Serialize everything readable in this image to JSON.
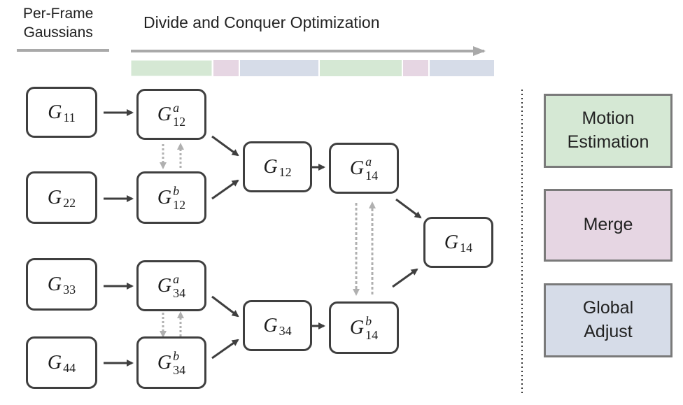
{
  "header": {
    "per_frame_line1": "Per-Frame",
    "per_frame_line2": "Gaussians",
    "optimization_title": "Divide and Conquer Optimization"
  },
  "timeline": {
    "segments": [
      "motion",
      "merge",
      "global",
      "motion",
      "merge",
      "global"
    ]
  },
  "colors": {
    "motion": "#d5e8d4",
    "merge": "#e6d6e3",
    "global": "#d6dce8",
    "motion_border": "#6d6d6d",
    "arrow_gray": "#b0b0b0",
    "box_border": "#3f3f3f"
  },
  "nodes": {
    "g11": {
      "base": "G",
      "sub": "11"
    },
    "g22": {
      "base": "G",
      "sub": "22"
    },
    "g33": {
      "base": "G",
      "sub": "33"
    },
    "g44": {
      "base": "G",
      "sub": "44"
    },
    "g12a": {
      "base": "G",
      "sub": "12",
      "sup": "a"
    },
    "g12b": {
      "base": "G",
      "sub": "12",
      "sup": "b"
    },
    "g34a": {
      "base": "G",
      "sub": "34",
      "sup": "a"
    },
    "g34b": {
      "base": "G",
      "sub": "34",
      "sup": "b"
    },
    "g12": {
      "base": "G",
      "sub": "12"
    },
    "g34": {
      "base": "G",
      "sub": "34"
    },
    "g14a": {
      "base": "G",
      "sub": "14",
      "sup": "a"
    },
    "g14b": {
      "base": "G",
      "sub": "14",
      "sup": "b"
    },
    "g14": {
      "base": "G",
      "sub": "14"
    }
  },
  "legend": {
    "motion_line1": "Motion",
    "motion_line2": "Estimation",
    "merge": "Merge",
    "global_line1": "Global",
    "global_line2": "Adjust"
  }
}
